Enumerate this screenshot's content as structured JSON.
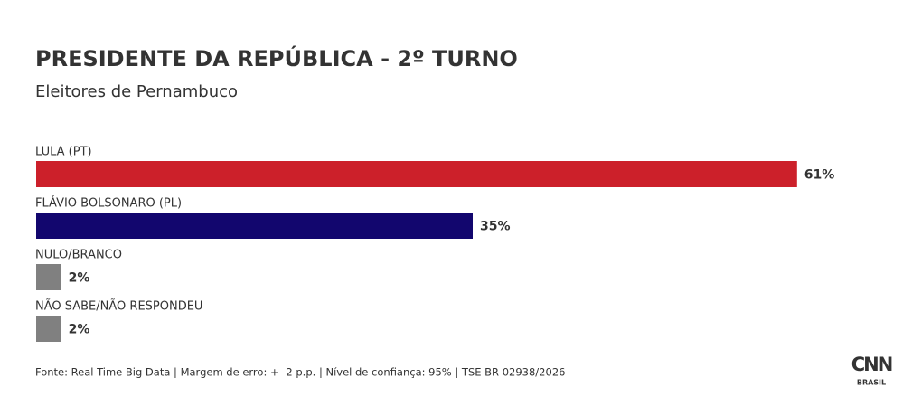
{
  "chart_data": {
    "type": "bar",
    "orientation": "horizontal",
    "title": "PRESIDENTE DA REPÚBLICA - 2º TURNO",
    "subtitle": "Eleitores de Pernambuco",
    "categories": [
      "LULA (PT)",
      "FLÁVIO BOLSONARO (PL)",
      "NULO/BRANCO",
      "NÃO SABE/NÃO RESPONDEU"
    ],
    "values": [
      61,
      35,
      2,
      2
    ],
    "value_labels": [
      "61%",
      "35%",
      "2%",
      "2%"
    ],
    "colors": [
      "#cc202a",
      "#12066e",
      "#808080",
      "#808080"
    ],
    "source": "Fonte: Real Time Big Data | Margem de erro: +- 2 p.p. | Nível de confiança: 95% | TSE BR-02938/2026",
    "logo_text": "CNN",
    "logo_subtext": "BRASIL"
  }
}
